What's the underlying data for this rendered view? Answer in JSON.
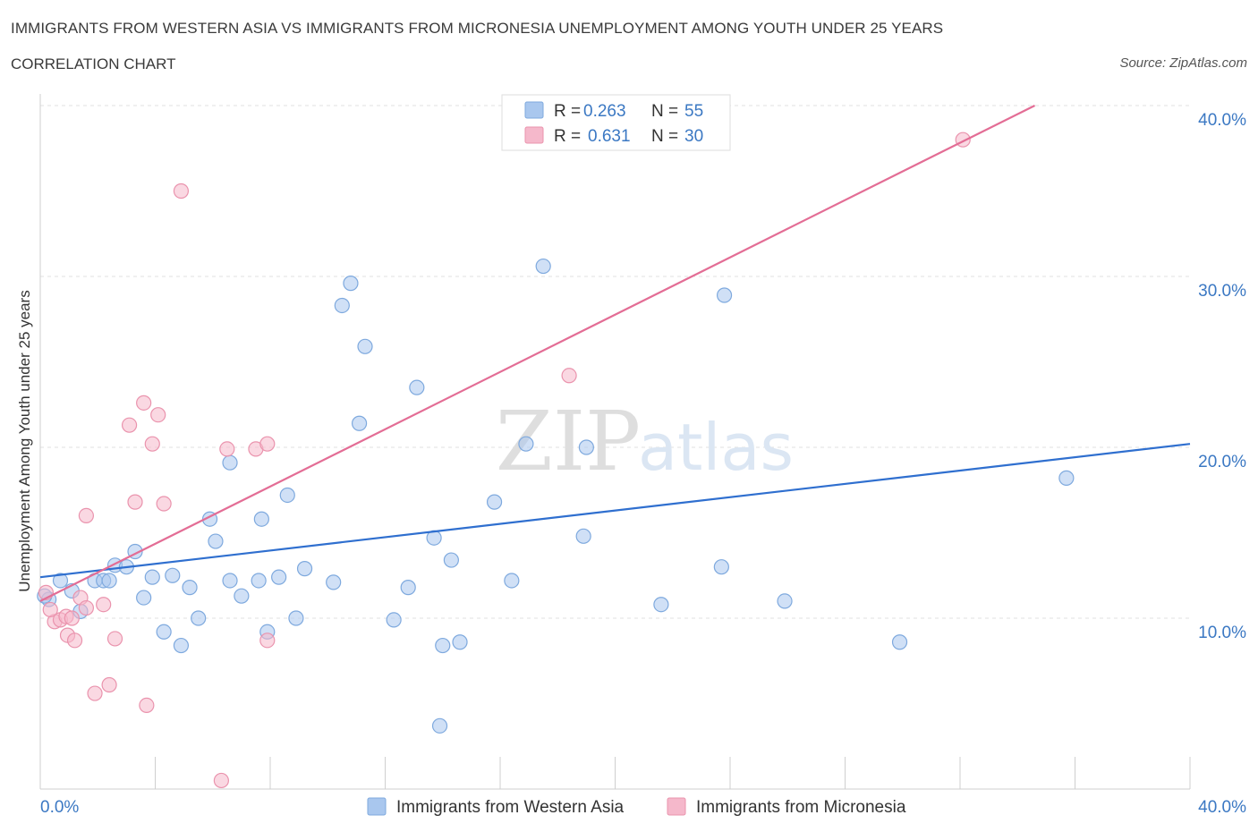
{
  "header": {
    "title": "IMMIGRANTS FROM WESTERN ASIA VS IMMIGRANTS FROM MICRONESIA UNEMPLOYMENT AMONG YOUTH UNDER 25 YEARS",
    "subtitle": "CORRELATION CHART",
    "source": "Source: ZipAtlas.com"
  },
  "watermark": {
    "zip": "ZIP",
    "atlas": "atlas"
  },
  "stats": {
    "r_label": "R =",
    "n_label": "N =",
    "rows": [
      {
        "r": "0.263",
        "n": "55",
        "color": "#a9c7ee"
      },
      {
        "r": "0.631",
        "n": "30",
        "color": "#f5b8cb"
      }
    ]
  },
  "chart_data": {
    "type": "scatter",
    "title": "IMMIGRANTS FROM WESTERN ASIA VS IMMIGRANTS FROM MICRONESIA UNEMPLOYMENT AMONG YOUTH UNDER 25 YEARS",
    "subtitle": "CORRELATION CHART",
    "xlabel": "",
    "ylabel": "Unemployment Among Youth under 25 years",
    "xlim": [
      0,
      40
    ],
    "ylim": [
      0,
      40
    ],
    "x_tick_labels": [
      "0.0%",
      "40.0%"
    ],
    "y_ticks": [
      10,
      20,
      30,
      40
    ],
    "y_tick_labels": [
      "10.0%",
      "20.0%",
      "30.0%",
      "40.0%"
    ],
    "grid": true,
    "legend_position": "bottom-center",
    "series": [
      {
        "name": "Immigrants from Western Asia",
        "color": "#a9c7ee",
        "stroke": "#7ea9de",
        "trend_color": "#2f6fcf",
        "trend": [
          [
            0,
            12.4
          ],
          [
            40,
            20.2
          ]
        ],
        "points": [
          [
            0.3,
            11.1
          ],
          [
            0.7,
            12.2
          ],
          [
            1.1,
            11.6
          ],
          [
            1.4,
            10.4
          ],
          [
            1.9,
            12.2
          ],
          [
            2.2,
            12.2
          ],
          [
            2.6,
            13.1
          ],
          [
            3.0,
            13.0
          ],
          [
            3.3,
            13.9
          ],
          [
            3.6,
            11.2
          ],
          [
            3.9,
            12.4
          ],
          [
            4.3,
            9.2
          ],
          [
            4.6,
            12.5
          ],
          [
            4.9,
            8.4
          ],
          [
            5.2,
            11.8
          ],
          [
            5.5,
            10.0
          ],
          [
            5.9,
            15.8
          ],
          [
            6.1,
            14.5
          ],
          [
            6.6,
            19.1
          ],
          [
            6.6,
            12.2
          ],
          [
            7.0,
            11.3
          ],
          [
            7.6,
            12.2
          ],
          [
            7.7,
            15.8
          ],
          [
            7.9,
            9.2
          ],
          [
            8.3,
            12.4
          ],
          [
            8.6,
            17.2
          ],
          [
            8.9,
            10.0
          ],
          [
            9.2,
            12.9
          ],
          [
            10.2,
            12.1
          ],
          [
            10.5,
            28.3
          ],
          [
            10.8,
            29.6
          ],
          [
            11.1,
            21.4
          ],
          [
            11.3,
            25.9
          ],
          [
            12.3,
            9.9
          ],
          [
            12.8,
            11.8
          ],
          [
            13.1,
            23.5
          ],
          [
            13.7,
            14.7
          ],
          [
            14.0,
            8.4
          ],
          [
            14.3,
            13.4
          ],
          [
            14.6,
            8.6
          ],
          [
            15.8,
            16.8
          ],
          [
            16.4,
            12.2
          ],
          [
            16.9,
            20.2
          ],
          [
            17.5,
            30.6
          ],
          [
            18.9,
            14.8
          ],
          [
            19.0,
            20.0
          ],
          [
            21.6,
            10.8
          ],
          [
            23.7,
            13.0
          ],
          [
            23.8,
            28.9
          ],
          [
            25.9,
            11.0
          ],
          [
            29.9,
            8.6
          ],
          [
            35.7,
            18.2
          ],
          [
            0.15,
            11.3
          ],
          [
            2.4,
            12.2
          ],
          [
            13.9,
            3.7
          ]
        ]
      },
      {
        "name": "Immigrants from Micronesia",
        "color": "#f5b8cb",
        "stroke": "#ea93ad",
        "trend_color": "#e36d95",
        "trend": [
          [
            0,
            11.0
          ],
          [
            34.6,
            40.0
          ]
        ],
        "points": [
          [
            0.2,
            11.5
          ],
          [
            0.5,
            9.8
          ],
          [
            0.7,
            9.9
          ],
          [
            0.9,
            10.1
          ],
          [
            0.95,
            9.0
          ],
          [
            1.2,
            8.7
          ],
          [
            1.4,
            11.2
          ],
          [
            1.6,
            16.0
          ],
          [
            1.6,
            10.6
          ],
          [
            1.9,
            5.6
          ],
          [
            2.2,
            10.8
          ],
          [
            2.4,
            6.1
          ],
          [
            2.6,
            8.8
          ],
          [
            3.1,
            21.3
          ],
          [
            3.3,
            16.8
          ],
          [
            3.6,
            22.6
          ],
          [
            3.7,
            4.9
          ],
          [
            3.9,
            20.2
          ],
          [
            4.1,
            21.9
          ],
          [
            4.3,
            16.7
          ],
          [
            4.9,
            35.0
          ],
          [
            6.3,
            0.5
          ],
          [
            6.5,
            19.9
          ],
          [
            7.5,
            19.9
          ],
          [
            7.9,
            20.2
          ],
          [
            7.9,
            8.7
          ],
          [
            18.4,
            24.2
          ],
          [
            32.1,
            38.0
          ],
          [
            0.35,
            10.5
          ],
          [
            1.1,
            10.0
          ]
        ]
      }
    ]
  }
}
